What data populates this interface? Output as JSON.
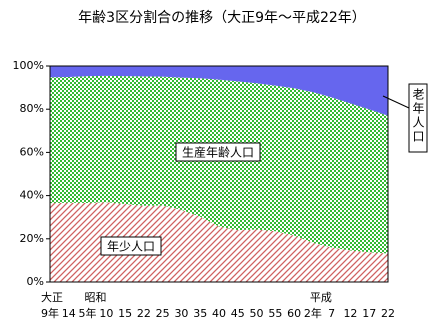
{
  "chart_data": {
    "type": "stacked_area",
    "title": "年齢3区分割合の推移（大正9年～平成22年）",
    "categories": [
      "9年",
      "14",
      "5年",
      "10",
      "15",
      "22",
      "25",
      "30",
      "35",
      "40",
      "45",
      "50",
      "55",
      "60",
      "2年",
      "7",
      "12",
      "17",
      "22"
    ],
    "category_groups": [
      "大正",
      null,
      "昭和",
      null,
      null,
      null,
      null,
      null,
      null,
      null,
      null,
      null,
      null,
      null,
      "平成",
      null,
      null,
      null,
      null
    ],
    "series": [
      {
        "name": "年少人口",
        "color": "#d06060",
        "values": [
          36.5,
          36.7,
          36.6,
          36.9,
          36.1,
          35.3,
          35.4,
          33.4,
          30.2,
          25.7,
          24.0,
          24.3,
          23.5,
          21.5,
          18.2,
          16.0,
          14.6,
          13.8,
          13.2
        ]
      },
      {
        "name": "生産年齢人口",
        "color": "#33bb33",
        "values": [
          58.3,
          58.2,
          58.7,
          58.5,
          59.2,
          59.9,
          59.7,
          61.2,
          64.1,
          68.0,
          68.9,
          67.7,
          67.4,
          68.2,
          69.7,
          69.5,
          68.1,
          66.1,
          63.8
        ]
      },
      {
        "name": "老年人口",
        "color": "#6666ee",
        "values": [
          5.3,
          5.1,
          4.8,
          4.7,
          4.8,
          4.8,
          4.9,
          5.3,
          5.7,
          6.3,
          7.1,
          7.9,
          9.1,
          10.3,
          12.1,
          14.6,
          17.4,
          20.2,
          23.0
        ]
      }
    ],
    "ylim": [
      0,
      100
    ],
    "yticks": [
      {
        "value": 0,
        "label": "0%"
      },
      {
        "value": 20,
        "label": "20%"
      },
      {
        "value": 40,
        "label": "40%"
      },
      {
        "value": 60,
        "label": "60%"
      },
      {
        "value": 80,
        "label": "80%"
      },
      {
        "value": 100,
        "label": "100%"
      }
    ],
    "grid": false
  }
}
